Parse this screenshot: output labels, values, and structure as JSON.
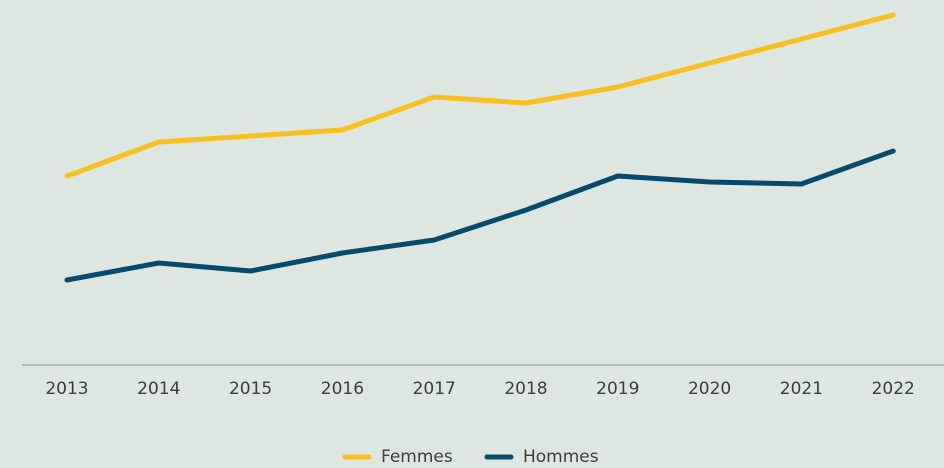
{
  "chart_data": {
    "type": "line",
    "categories": [
      "2013",
      "2014",
      "2015",
      "2016",
      "2017",
      "2018",
      "2019",
      "2020",
      "2021",
      "2022"
    ],
    "series": [
      {
        "name": "Femmes",
        "color": "#f8bf1e",
        "values": [
          189,
          223,
          229,
          235,
          268,
          262,
          278,
          302,
          326,
          350
        ]
      },
      {
        "name": "Hommes",
        "color": "#064a6e",
        "values": [
          85,
          102,
          94,
          112,
          125,
          155,
          189,
          183,
          181,
          214
        ]
      }
    ],
    "ylim": [
      0,
      365
    ],
    "legend": "bottom"
  }
}
